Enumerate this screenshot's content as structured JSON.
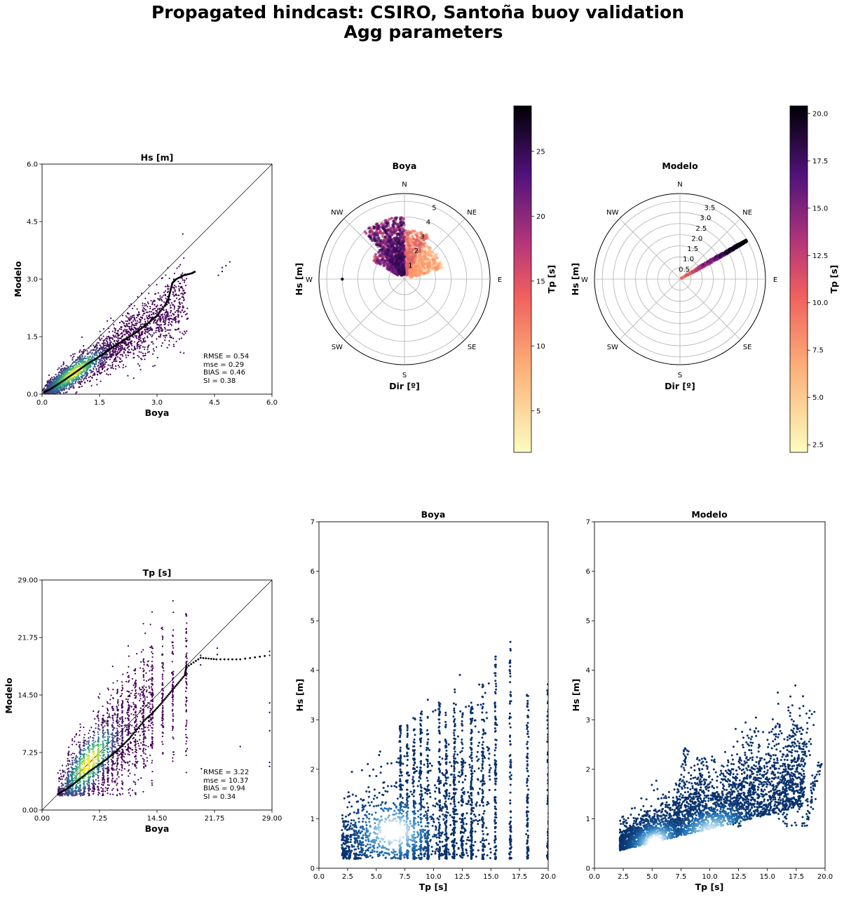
{
  "figure": {
    "title_line1": "Propagated hindcast: CSIRO, Santoña buoy validation",
    "title_line2": "Agg parameters"
  },
  "chart_data": [
    {
      "id": "hs_scatter",
      "type": "scatter",
      "title": "Hs [m]",
      "xlabel": "Boya",
      "ylabel": "Modelo",
      "xlim": [
        0,
        6
      ],
      "ylim": [
        0,
        6
      ],
      "xticks": [
        "0.0",
        "1.5",
        "3.0",
        "4.5",
        "6.0"
      ],
      "yticks": [
        "0.0",
        "1.5",
        "3.0",
        "4.5",
        "6.0"
      ],
      "identity_line": true,
      "colormap": "viridis density",
      "qq_points": [
        [
          0.05,
          0.05
        ],
        [
          0.2,
          0.12
        ],
        [
          0.4,
          0.25
        ],
        [
          0.6,
          0.38
        ],
        [
          0.8,
          0.52
        ],
        [
          1.0,
          0.66
        ],
        [
          1.2,
          0.8
        ],
        [
          1.4,
          0.92
        ],
        [
          1.6,
          1.05
        ],
        [
          1.8,
          1.2
        ],
        [
          2.0,
          1.32
        ],
        [
          2.2,
          1.45
        ],
        [
          2.4,
          1.57
        ],
        [
          2.6,
          1.72
        ],
        [
          2.8,
          1.88
        ],
        [
          3.0,
          2.05
        ],
        [
          3.2,
          2.3
        ],
        [
          3.3,
          2.5
        ],
        [
          3.35,
          2.7
        ],
        [
          3.4,
          2.9
        ],
        [
          3.5,
          3.0
        ],
        [
          3.7,
          3.1
        ],
        [
          3.9,
          3.15
        ],
        [
          4.0,
          3.2
        ]
      ],
      "outliers": [
        [
          4.6,
          3.1
        ],
        [
          4.7,
          3.3
        ],
        [
          4.8,
          3.35
        ],
        [
          4.9,
          3.45
        ],
        [
          4.7,
          3.2
        ]
      ],
      "stats": [
        "RMSE = 0.54",
        "mse =  0.29",
        "BIAS = 0.46",
        "SI = 0.38"
      ]
    },
    {
      "id": "polar_boya",
      "type": "scatter",
      "projection": "polar",
      "title": "Boya",
      "xlabel": "Dir [º]",
      "ylabel": "Hs [m]",
      "directions": [
        "N",
        "NE",
        "E",
        "SE",
        "S",
        "SW",
        "W",
        "NW"
      ],
      "rlim": [
        0,
        5.5
      ],
      "rticks": [
        "1",
        "2",
        "3",
        "4",
        "5"
      ],
      "colorbar": {
        "label": "Tp [s]",
        "range": [
          1.8,
          28.5
        ],
        "ticks": [
          "5",
          "10",
          "15",
          "20",
          "25"
        ],
        "colormap": "magma_r"
      },
      "clusters": [
        {
          "dir_range": [
            320,
            360
          ],
          "hs_range": [
            0.3,
            4.0
          ],
          "tp": [
            12,
            25
          ]
        },
        {
          "dir_range": [
            0,
            30
          ],
          "hs_range": [
            0.3,
            3.2
          ],
          "tp": [
            6,
            12
          ]
        },
        {
          "dir_range": [
            30,
            75
          ],
          "hs_range": [
            0.4,
            2.6
          ],
          "tp": [
            3,
            8
          ]
        },
        {
          "dir_range": [
            300,
            330
          ],
          "hs_range": [
            0.5,
            2.5
          ],
          "tp": [
            10,
            22
          ]
        }
      ],
      "outliers": [
        {
          "dir": 270,
          "hs": 4.0,
          "tp": 26
        }
      ]
    },
    {
      "id": "polar_modelo",
      "type": "scatter",
      "projection": "polar",
      "title": "Modelo",
      "xlabel": "Dir [º]",
      "ylabel": "Hs [m]",
      "directions": [
        "N",
        "NE",
        "E",
        "SE",
        "S",
        "SW",
        "W",
        "NW"
      ],
      "rlim": [
        0,
        3.85
      ],
      "rticks": [
        "0.5",
        "1.0",
        "1.5",
        "2.0",
        "2.5",
        "3.0",
        "3.5"
      ],
      "colorbar": {
        "label": "Tp [s]",
        "range": [
          2.1,
          20.4
        ],
        "ticks": [
          "2.5",
          "5.0",
          "7.5",
          "10.0",
          "12.5",
          "15.0",
          "17.5",
          "20.0"
        ],
        "colormap": "magma_r"
      },
      "band": {
        "dir_range": [
          56,
          64
        ],
        "hs_range": [
          0.05,
          3.45
        ],
        "tp": [
          3,
          20
        ]
      }
    },
    {
      "id": "tp_scatter",
      "type": "scatter",
      "title": "Tp [s]",
      "xlabel": "Boya",
      "ylabel": "Modelo",
      "xlim": [
        0,
        29
      ],
      "ylim": [
        0,
        29
      ],
      "xticks": [
        "0.00",
        "7.25",
        "14.50",
        "21.75",
        "29.00"
      ],
      "yticks": [
        "0.00",
        "7.25",
        "14.50",
        "21.75",
        "29.00"
      ],
      "identity_line": true,
      "colormap": "viridis density",
      "qq_points": [
        [
          2,
          2
        ],
        [
          3,
          2.6
        ],
        [
          4,
          3.3
        ],
        [
          5,
          4.1
        ],
        [
          6,
          4.9
        ],
        [
          7,
          5.6
        ],
        [
          8,
          6.3
        ],
        [
          9,
          7.1
        ],
        [
          10,
          8.0
        ],
        [
          11,
          9.0
        ],
        [
          12,
          10.2
        ],
        [
          13,
          11.4
        ],
        [
          14,
          12.3
        ],
        [
          15,
          13.4
        ],
        [
          16,
          14.6
        ],
        [
          17,
          15.8
        ],
        [
          18,
          17.0
        ],
        [
          18.2,
          18.0
        ],
        [
          20,
          19.2
        ],
        [
          22,
          19.0
        ],
        [
          25,
          19.0
        ],
        [
          28.7,
          19.5
        ]
      ],
      "stats": [
        "RMSE = 3.22",
        "mse =  10.37",
        "BIAS = 0.94",
        "SI = 0.34"
      ]
    },
    {
      "id": "hs_tp_boya",
      "type": "scatter",
      "title": "Boya",
      "xlabel": "Tp [s]",
      "ylabel": "Hs [m]",
      "xlim": [
        0,
        20
      ],
      "ylim": [
        0,
        7.5
      ],
      "xticks": [
        "0.0",
        "2.5",
        "5.0",
        "7.5",
        "10.0",
        "12.5",
        "15.0",
        "17.5",
        "20.0"
      ],
      "yticks": [
        "0",
        "1",
        "2",
        "3",
        "4",
        "5",
        "6",
        "7"
      ],
      "colormap": "Blues_r density",
      "column_tops": [
        [
          7.1,
          3.1
        ],
        [
          7.7,
          3.2
        ],
        [
          8.3,
          3.3
        ],
        [
          8.9,
          3.4
        ],
        [
          9.5,
          3.3
        ],
        [
          10.5,
          3.6
        ],
        [
          11.1,
          3.4
        ],
        [
          11.8,
          3.7
        ],
        [
          12.5,
          3.5
        ],
        [
          13.3,
          3.5
        ],
        [
          14.3,
          4.1
        ],
        [
          15.4,
          4.7
        ],
        [
          16.7,
          4.9
        ],
        [
          18.2,
          3.9
        ],
        [
          20,
          4.0
        ]
      ]
    },
    {
      "id": "hs_tp_modelo",
      "type": "scatter",
      "title": "Modelo",
      "xlabel": "Tp [s]",
      "ylabel": "Hs [m]",
      "xlim": [
        0,
        20
      ],
      "ylim": [
        0,
        7.5
      ],
      "xticks": [
        "0.0",
        "2.5",
        "5.0",
        "7.5",
        "10.0",
        "12.5",
        "15.0",
        "17.5",
        "20.0"
      ],
      "yticks": [
        "0",
        "1",
        "2",
        "3",
        "4",
        "5",
        "6",
        "7"
      ],
      "colormap": "Blues_r density",
      "plumes": [
        [
          8,
          2.6
        ],
        [
          9.4,
          2.4
        ],
        [
          13.6,
          3.0
        ],
        [
          17.5,
          3.1
        ],
        [
          18.7,
          3.45
        ],
        [
          19.5,
          2.3
        ]
      ]
    }
  ],
  "colors": {
    "viridis": [
      "#440154",
      "#3b528b",
      "#21918c",
      "#5ec962",
      "#fde725"
    ],
    "magma_r": [
      "#fcfdbf",
      "#fc8961",
      "#b73779",
      "#51127c",
      "#000004"
    ],
    "blues": [
      "#ffffff",
      "#6baed6",
      "#2171b5",
      "#08306b"
    ]
  }
}
